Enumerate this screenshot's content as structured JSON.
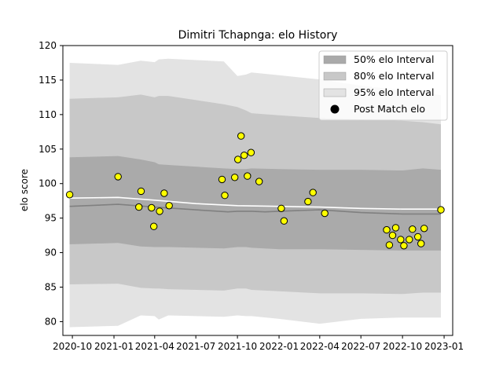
{
  "chart_data": {
    "type": "scatter",
    "title": "Dimitri Tchapnga: elo History",
    "xlabel": "",
    "ylabel": "elo score",
    "xlim": [
      "2020-09-10",
      "2023-01-20"
    ],
    "ylim": [
      78,
      120
    ],
    "x_ticks": [
      {
        "date": "2020-10-01",
        "label": "2020-10"
      },
      {
        "date": "2021-01-01",
        "label": "2021-01"
      },
      {
        "date": "2021-04-01",
        "label": "2021-04"
      },
      {
        "date": "2021-07-01",
        "label": "2021-07"
      },
      {
        "date": "2021-10-01",
        "label": "2021-10"
      },
      {
        "date": "2022-01-01",
        "label": "2022-01"
      },
      {
        "date": "2022-04-01",
        "label": "2022-04"
      },
      {
        "date": "2022-07-01",
        "label": "2022-07"
      },
      {
        "date": "2022-10-01",
        "label": "2022-10"
      },
      {
        "date": "2023-01-01",
        "label": "2023-01"
      }
    ],
    "y_ticks": [
      80,
      85,
      90,
      95,
      100,
      105,
      110,
      115,
      120
    ],
    "grid": false,
    "legend_position": "top-right",
    "legend": [
      {
        "label": "50% elo Interval",
        "kind": "band",
        "color": "#aaaaaa"
      },
      {
        "label": "80% elo Interval",
        "kind": "band",
        "color": "#c8c8c8"
      },
      {
        "label": "95% elo Interval",
        "kind": "band",
        "color": "#e3e3e3"
      },
      {
        "label": "Post Match elo",
        "kind": "marker",
        "color": "#000000"
      }
    ],
    "bands": {
      "x": [
        "2020-09-25",
        "2021-01-10",
        "2021-03-01",
        "2021-04-01",
        "2021-04-10",
        "2021-05-01",
        "2021-09-01",
        "2021-10-01",
        "2021-10-20",
        "2021-11-01",
        "2022-01-01",
        "2022-04-01",
        "2022-07-01",
        "2022-10-01",
        "2022-11-15",
        "2022-12-25"
      ],
      "interval_95": {
        "upper": [
          117.5,
          117.2,
          117.8,
          117.6,
          118.0,
          118.1,
          117.7,
          115.6,
          115.8,
          116.1,
          115.7,
          115.1,
          114.2,
          113.5,
          113.2,
          112.8
        ],
        "lower": [
          79.2,
          79.4,
          80.9,
          80.8,
          80.3,
          80.9,
          80.7,
          80.9,
          80.8,
          80.8,
          80.4,
          79.7,
          80.4,
          80.6,
          80.6,
          80.6
        ]
      },
      "interval_80": {
        "upper": [
          112.3,
          112.5,
          112.9,
          112.5,
          112.7,
          112.7,
          111.5,
          111.1,
          110.6,
          110.2,
          109.9,
          109.5,
          109.3,
          109.1,
          108.9,
          108.6
        ],
        "lower": [
          85.4,
          85.5,
          84.9,
          84.8,
          84.8,
          84.7,
          84.5,
          84.8,
          84.8,
          84.6,
          84.4,
          84.1,
          84.1,
          84.0,
          84.2,
          84.2
        ]
      },
      "interval_50": {
        "upper": [
          103.8,
          104.0,
          103.5,
          103.1,
          102.8,
          102.7,
          102.2,
          102.1,
          102.1,
          102.2,
          102.1,
          102.0,
          102.0,
          101.9,
          102.2,
          102.0
        ],
        "lower": [
          91.2,
          91.4,
          90.9,
          90.8,
          90.8,
          90.8,
          90.6,
          90.8,
          90.8,
          90.7,
          90.5,
          90.5,
          90.4,
          90.3,
          90.3,
          90.3
        ]
      }
    },
    "median_line": {
      "x": [
        "2020-09-25",
        "2021-01-10",
        "2021-04-01",
        "2021-07-01",
        "2021-09-10",
        "2021-10-01",
        "2021-11-01",
        "2021-12-01",
        "2022-01-01",
        "2022-04-01",
        "2022-07-01",
        "2022-10-01",
        "2022-12-25"
      ],
      "values": [
        96.7,
        97.0,
        96.6,
        96.2,
        95.9,
        96.0,
        96.0,
        95.9,
        96.0,
        96.2,
        95.8,
        95.6,
        95.6
      ]
    },
    "mean_line": {
      "x": [
        "2020-09-25",
        "2021-01-10",
        "2021-04-01",
        "2021-07-01",
        "2021-10-01",
        "2022-01-01",
        "2022-04-01",
        "2022-07-01",
        "2022-10-01",
        "2022-12-25"
      ],
      "values": [
        97.9,
        98.0,
        97.6,
        97.1,
        96.8,
        96.7,
        96.6,
        96.4,
        96.3,
        96.3
      ]
    },
    "series": [
      {
        "name": "Post Match elo",
        "color": "#ffff00",
        "edge_color": "#000000",
        "points": [
          {
            "x": "2020-09-25",
            "y": 98.4
          },
          {
            "x": "2021-01-10",
            "y": 101.0
          },
          {
            "x": "2021-02-25",
            "y": 96.6
          },
          {
            "x": "2021-03-02",
            "y": 98.9
          },
          {
            "x": "2021-03-25",
            "y": 96.5
          },
          {
            "x": "2021-03-30",
            "y": 93.8
          },
          {
            "x": "2021-04-12",
            "y": 96.0
          },
          {
            "x": "2021-04-22",
            "y": 98.6
          },
          {
            "x": "2021-05-03",
            "y": 96.8
          },
          {
            "x": "2021-08-28",
            "y": 100.6
          },
          {
            "x": "2021-09-03",
            "y": 98.3
          },
          {
            "x": "2021-09-25",
            "y": 100.9
          },
          {
            "x": "2021-10-02",
            "y": 103.5
          },
          {
            "x": "2021-10-09",
            "y": 106.9
          },
          {
            "x": "2021-10-16",
            "y": 104.1
          },
          {
            "x": "2021-10-23",
            "y": 101.1
          },
          {
            "x": "2021-10-31",
            "y": 104.5
          },
          {
            "x": "2021-11-18",
            "y": 100.3
          },
          {
            "x": "2022-01-06",
            "y": 96.4
          },
          {
            "x": "2022-01-12",
            "y": 94.6
          },
          {
            "x": "2022-03-06",
            "y": 97.4
          },
          {
            "x": "2022-03-17",
            "y": 98.7
          },
          {
            "x": "2022-04-12",
            "y": 95.7
          },
          {
            "x": "2022-08-27",
            "y": 93.3
          },
          {
            "x": "2022-09-02",
            "y": 91.1
          },
          {
            "x": "2022-09-09",
            "y": 92.5
          },
          {
            "x": "2022-09-16",
            "y": 93.6
          },
          {
            "x": "2022-09-27",
            "y": 91.9
          },
          {
            "x": "2022-10-04",
            "y": 91.0
          },
          {
            "x": "2022-10-16",
            "y": 91.9
          },
          {
            "x": "2022-10-23",
            "y": 93.4
          },
          {
            "x": "2022-11-04",
            "y": 92.3
          },
          {
            "x": "2022-11-11",
            "y": 91.3
          },
          {
            "x": "2022-11-18",
            "y": 93.5
          },
          {
            "x": "2022-12-25",
            "y": 96.2
          }
        ]
      }
    ]
  }
}
